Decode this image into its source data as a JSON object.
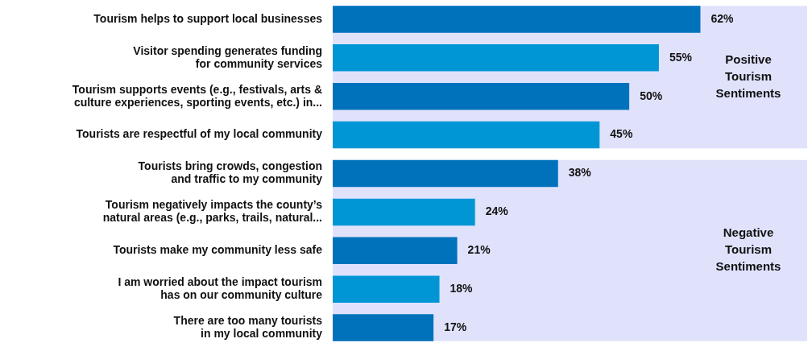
{
  "chart_data": {
    "type": "bar",
    "orientation": "horizontal",
    "categories": [
      "Tourism helps to support local businesses",
      "Visitor spending generates funding\nfor community services",
      "Tourism supports events (e.g., festivals, arts &\nculture experiences, sporting events, etc.) in...",
      "Tourists are respectful of my local community",
      "Tourists bring crowds, congestion\nand traffic to my community",
      "Tourism negatively impacts the county’s\nnatural areas (e.g., parks, trails, natural...",
      "Tourists make my community less safe",
      "I am worried about the impact tourism\nhas on our community culture",
      "There are too many tourists\nin my local community"
    ],
    "values": [
      62,
      55,
      50,
      45,
      38,
      24,
      21,
      18,
      17
    ],
    "colors": [
      "#0072bc",
      "#0096d6",
      "#0072bc",
      "#0096d6",
      "#0072bc",
      "#0096d6",
      "#0072bc",
      "#0096d6",
      "#0072bc"
    ],
    "value_labels": [
      "62%",
      "55%",
      "50%",
      "45%",
      "38%",
      "24%",
      "21%",
      "18%",
      "17%"
    ],
    "xlim": [
      0,
      80
    ],
    "tick_labels": "y",
    "legend": false,
    "bands": [
      {
        "axis": "y",
        "from": "Tourism helps to support local businesses",
        "to": "Tourists are respectful of my local community",
        "label": "Positive\nTourism\nSentiments",
        "color": "#e0e2fc"
      },
      {
        "axis": "y",
        "from": "Tourists bring crowds, congestion\nand traffic to my community",
        "to": "There are too many tourists\nin my local community",
        "label": "Negative\nTourism\nSentiments",
        "color": "#e0e2fc"
      }
    ]
  }
}
